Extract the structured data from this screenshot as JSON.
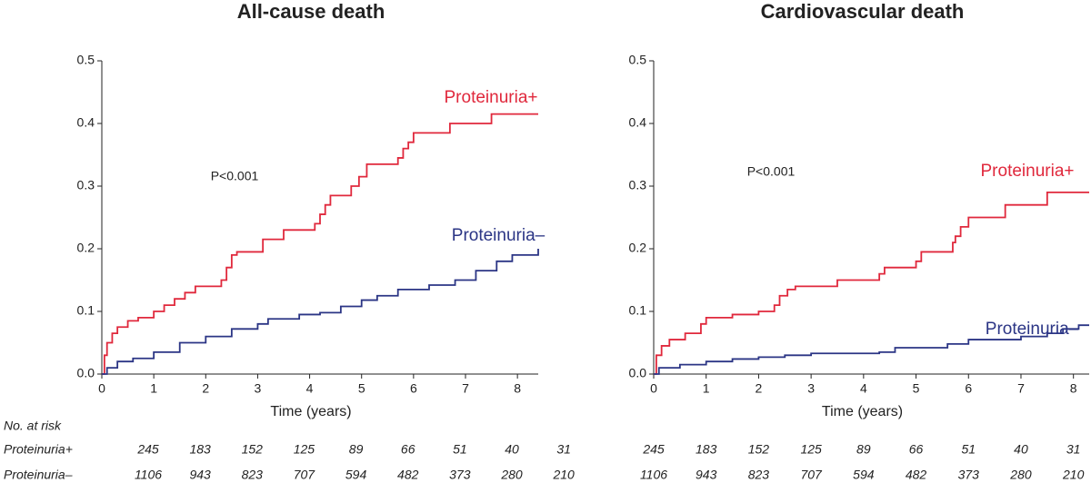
{
  "chart_data": [
    {
      "type": "step",
      "title": "All-cause death",
      "x_label": "Time (years)",
      "annotation": "P<0.001",
      "xlim": [
        0,
        8.4
      ],
      "xticks": [
        0,
        1,
        2,
        3,
        4,
        5,
        6,
        7,
        8
      ],
      "ylim": [
        0,
        0.5
      ],
      "yticks": [
        {
          "value": 0,
          "label": "0.0"
        },
        0.1,
        0.2,
        0.3,
        0.4,
        0.5
      ],
      "series": [
        {
          "name": "Proteinuria+",
          "color": "#e0283c",
          "x": [
            0,
            0.05,
            0.1,
            0.2,
            0.3,
            0.5,
            0.7,
            1.0,
            1.2,
            1.4,
            1.6,
            1.8,
            2.3,
            2.4,
            2.5,
            2.6,
            3.1,
            3.5,
            4.1,
            4.2,
            4.3,
            4.4,
            4.8,
            4.95,
            5.1,
            5.7,
            5.8,
            5.9,
            6.0,
            6.7,
            7.5,
            8.4
          ],
          "values": [
            0,
            0.03,
            0.05,
            0.065,
            0.075,
            0.085,
            0.09,
            0.1,
            0.11,
            0.12,
            0.13,
            0.14,
            0.15,
            0.17,
            0.19,
            0.195,
            0.215,
            0.23,
            0.24,
            0.255,
            0.27,
            0.285,
            0.3,
            0.315,
            0.335,
            0.345,
            0.36,
            0.37,
            0.385,
            0.4,
            0.415,
            0.415
          ]
        },
        {
          "name": "Proteinuria–",
          "color": "#2b3585",
          "x": [
            0,
            0.1,
            0.3,
            0.6,
            1,
            1.5,
            2,
            2.5,
            3,
            3.2,
            3.8,
            4.2,
            4.6,
            5,
            5.3,
            5.7,
            6.3,
            6.8,
            7.2,
            7.6,
            7.9,
            8.4
          ],
          "values": [
            0,
            0.01,
            0.02,
            0.025,
            0.035,
            0.05,
            0.06,
            0.072,
            0.08,
            0.088,
            0.095,
            0.098,
            0.108,
            0.118,
            0.125,
            0.135,
            0.142,
            0.15,
            0.165,
            0.18,
            0.19,
            0.2
          ]
        }
      ]
    },
    {
      "type": "step",
      "title": "Cardiovascular death",
      "x_label": "Time (years)",
      "annotation": "P<0.001",
      "xlim": [
        0,
        8.3
      ],
      "xticks": [
        0,
        1,
        2,
        3,
        4,
        5,
        6,
        7,
        8
      ],
      "ylim": [
        0,
        0.5
      ],
      "yticks": [
        {
          "value": 0,
          "label": "0.0"
        },
        0.1,
        0.2,
        0.3,
        0.4,
        0.5
      ],
      "series": [
        {
          "name": "Proteinuria+",
          "color": "#e0283c",
          "x": [
            0,
            0.05,
            0.15,
            0.3,
            0.6,
            0.9,
            1.0,
            1.5,
            2.0,
            2.3,
            2.4,
            2.55,
            2.7,
            3.5,
            4.3,
            4.4,
            5.0,
            5.1,
            5.7,
            5.75,
            5.85,
            6.0,
            6.7,
            7.5,
            8.3
          ],
          "values": [
            0,
            0.03,
            0.045,
            0.055,
            0.065,
            0.08,
            0.09,
            0.095,
            0.1,
            0.11,
            0.125,
            0.135,
            0.14,
            0.15,
            0.16,
            0.17,
            0.18,
            0.195,
            0.21,
            0.22,
            0.235,
            0.25,
            0.27,
            0.29,
            0.29
          ]
        },
        {
          "name": "Proteinuria–",
          "color": "#2b3585",
          "x": [
            0,
            0.1,
            0.5,
            1,
            1.5,
            2,
            2.5,
            3,
            4.3,
            4.6,
            5.6,
            6.0,
            7.0,
            7.5,
            7.8,
            8.1,
            8.3
          ],
          "values": [
            0,
            0.01,
            0.015,
            0.02,
            0.024,
            0.027,
            0.03,
            0.033,
            0.035,
            0.042,
            0.048,
            0.055,
            0.06,
            0.065,
            0.072,
            0.078,
            0.078
          ]
        }
      ]
    }
  ],
  "risk_table": {
    "title": "No. at risk",
    "rows": [
      {
        "name": "Proteinuria+",
        "counts": [
          [
            245,
            183,
            152,
            125,
            89,
            66,
            51,
            40,
            31
          ],
          [
            245,
            183,
            152,
            125,
            89,
            66,
            51,
            40,
            31
          ]
        ]
      },
      {
        "name": "Proteinuria–",
        "counts": [
          [
            1106,
            943,
            823,
            707,
            594,
            482,
            373,
            280,
            210
          ],
          [
            1106,
            943,
            823,
            707,
            594,
            482,
            373,
            280,
            210
          ]
        ]
      }
    ]
  }
}
